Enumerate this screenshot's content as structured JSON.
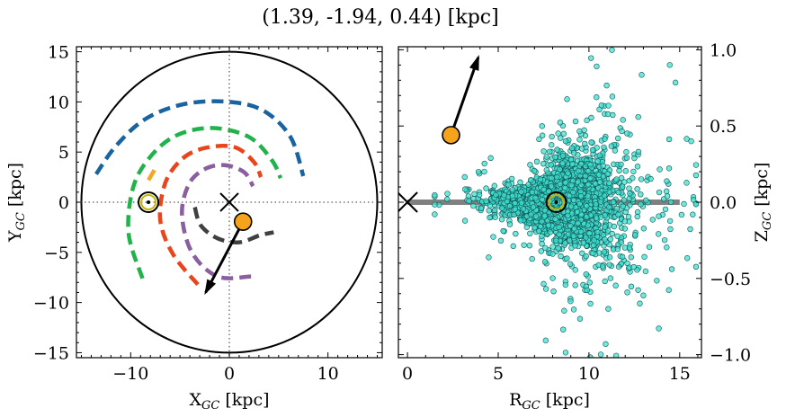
{
  "title": "(1.39, -1.94, 0.44) [kpc]",
  "chart_data": [
    {
      "type": "scatter",
      "panel": "left",
      "xlabel": "X",
      "xlabel_sub": "GC",
      "xlabel_unit": " [kpc]",
      "ylabel": "Y",
      "ylabel_sub": "GC",
      "ylabel_unit": " [kpc]",
      "xlim": [
        -15.5,
        15.5
      ],
      "ylim": [
        -15.5,
        15.5
      ],
      "xticks": [
        -10,
        0,
        10
      ],
      "yticks": [
        -15,
        -10,
        -5,
        0,
        5,
        10,
        15
      ],
      "xtick_labels": [
        "−10",
        "0",
        "10"
      ],
      "ytick_labels": [
        "−15",
        "−10",
        "−5",
        "0",
        "5",
        "10",
        "15"
      ],
      "outer_circle_radius": 15,
      "galactic_center": [
        0,
        0
      ],
      "sun": [
        -8.2,
        0
      ],
      "object": [
        1.39,
        -1.94
      ],
      "velocity_arrow_end": [
        -2.4,
        -9.0
      ],
      "spiral_arms": [
        {
          "color": "#1964a0",
          "points": [
            [
              -13.5,
              2.8
            ],
            [
              -11.5,
              5.6
            ],
            [
              -8.5,
              8.3
            ],
            [
              -4.5,
              9.8
            ],
            [
              0,
              10.0
            ],
            [
              3.5,
              9.1
            ],
            [
              6.2,
              6.5
            ],
            [
              7.5,
              2.6
            ]
          ]
        },
        {
          "color": "#22b24c",
          "points": [
            [
              -8.8,
              -7.6
            ],
            [
              -10.2,
              -3.2
            ],
            [
              -9.8,
              1.3
            ],
            [
              -8.2,
              4.3
            ],
            [
              -5.5,
              6.6
            ],
            [
              -1.8,
              7.4
            ],
            [
              2.0,
              6.5
            ],
            [
              4.3,
              4.2
            ],
            [
              5.2,
              2.4
            ]
          ]
        },
        {
          "color": "#e8451c",
          "points": [
            [
              -3.2,
              -8.2
            ],
            [
              -5.7,
              -5.2
            ],
            [
              -7.0,
              -1.8
            ],
            [
              -6.5,
              1.9
            ],
            [
              -4.8,
              4.3
            ],
            [
              -2.5,
              5.4
            ],
            [
              0.5,
              5.5
            ],
            [
              2.5,
              4.0
            ],
            [
              3.2,
              2.5
            ]
          ]
        },
        {
          "color": "#8a5fa0",
          "points": [
            [
              2.2,
              -7.4
            ],
            [
              -1.2,
              -7.4
            ],
            [
              -3.8,
              -5.0
            ],
            [
              -4.8,
              -1.2
            ],
            [
              -4.1,
              1.8
            ],
            [
              -2.5,
              3.3
            ],
            [
              -0.5,
              3.7
            ],
            [
              1.5,
              3.0
            ],
            [
              2.4,
              1.6
            ]
          ]
        },
        {
          "color": "#404040",
          "points": [
            [
              -3.5,
              -0.5
            ],
            [
              -2.9,
              -2.3
            ],
            [
              -1.2,
              -3.6
            ],
            [
              1.0,
              -4.0
            ],
            [
              3.1,
              -3.3
            ],
            [
              4.5,
              -3.0
            ]
          ]
        },
        {
          "color": "#f5a623",
          "points": [
            [
              -7.6,
              3.2
            ],
            [
              -8.2,
              2.2
            ]
          ]
        }
      ]
    },
    {
      "type": "scatter",
      "panel": "right",
      "xlabel": "R",
      "xlabel_sub": "GC",
      "xlabel_unit": " [kpc]",
      "ylabel": "Z",
      "ylabel_sub": "GC",
      "ylabel_unit": " [kpc]",
      "xlim": [
        -0.5,
        16.2
      ],
      "ylim": [
        -1.02,
        1.02
      ],
      "xticks": [
        0,
        5,
        10,
        15
      ],
      "yticks": [
        -1.0,
        -0.5,
        0.0,
        0.5,
        1.0
      ],
      "xtick_labels": [
        "0",
        "5",
        "10",
        "15"
      ],
      "ytick_labels": [
        "−1.0",
        "−0.5",
        "0.0",
        "0.5",
        "1.0"
      ],
      "disk_line": {
        "x": [
          0,
          15
        ],
        "z": 0,
        "color": "#808080"
      },
      "galactic_center": [
        0,
        0
      ],
      "sun": [
        8.2,
        0
      ],
      "object": [
        2.4,
        0.44
      ],
      "velocity_arrow_end": [
        3.9,
        0.95
      ],
      "stars_color": "#40e0d0",
      "stars_count": 2600
    }
  ]
}
